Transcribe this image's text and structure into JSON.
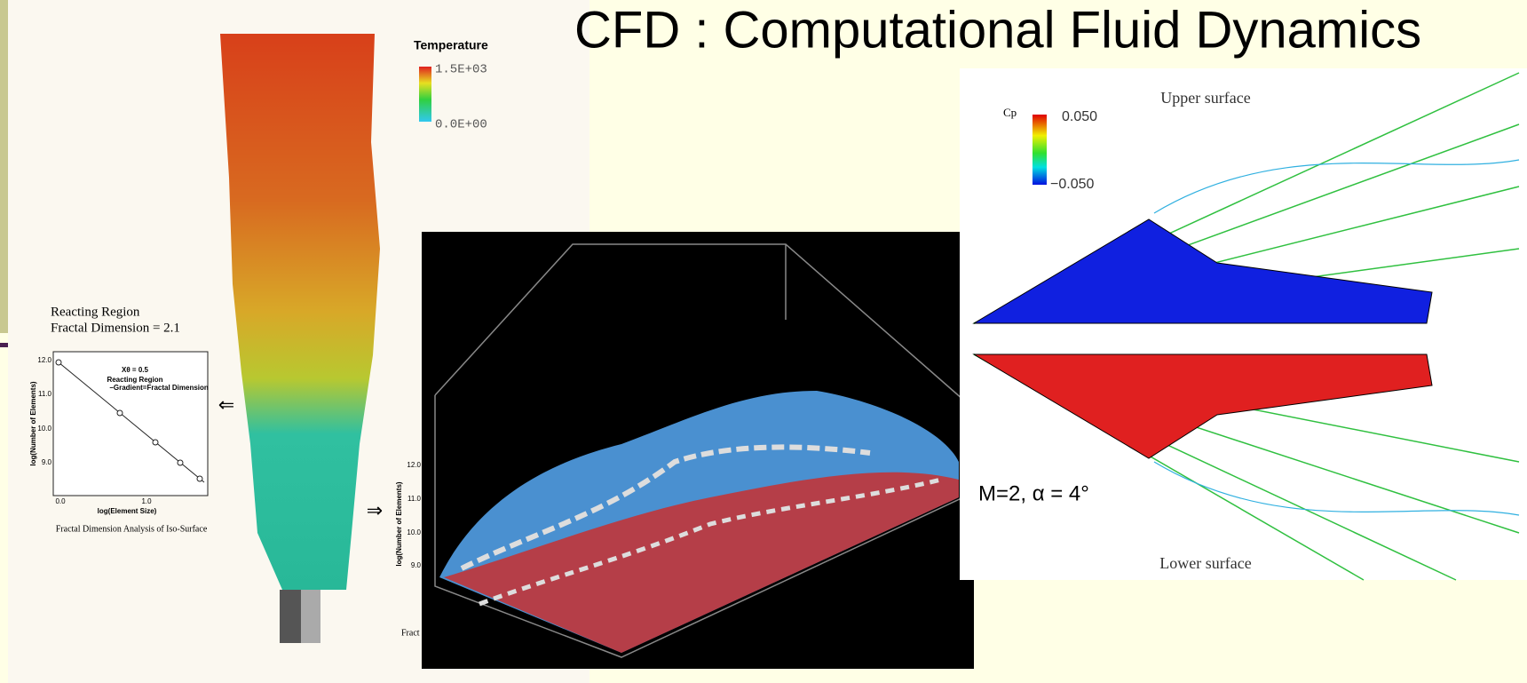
{
  "title": "CFD : Computational Fluid Dynamics",
  "left_panel": {
    "legend_title": "Temperature",
    "legend_max": "1.5E+03",
    "legend_min": "0.0E+00",
    "caption_title": "Reacting Region",
    "caption_subtitle": "Fractal Dimension = 2.1",
    "plot": {
      "annotation_value": "Xθ = 0.5",
      "annotation_region": "Reacting Region",
      "annotation_gradient": "−Gradient=Fractal Dimension",
      "y_label": "log(Number of Elements)",
      "x_label": "log(Element Size)",
      "yticks": [
        "12.0",
        "11.0",
        "10.0",
        "9.0"
      ],
      "xticks": [
        "0.0",
        "1.0"
      ],
      "caption": "Fractal Dimension Analysis of Iso-Surface"
    },
    "arrow_left": "⇐",
    "arrow_right": "⇒"
  },
  "hidden_plot": {
    "y_label": "log(Number of Elements)",
    "yticks": [
      "12.0",
      "11.0",
      "10.0",
      "9.0"
    ],
    "caption_fragment": "Fract"
  },
  "right_panel": {
    "legend_title": "Cp",
    "legend_max": "0.050",
    "legend_min": "−0.050",
    "upper_label": "Upper surface",
    "lower_label": "Lower surface",
    "condition": "M=2, α = 4°"
  }
}
